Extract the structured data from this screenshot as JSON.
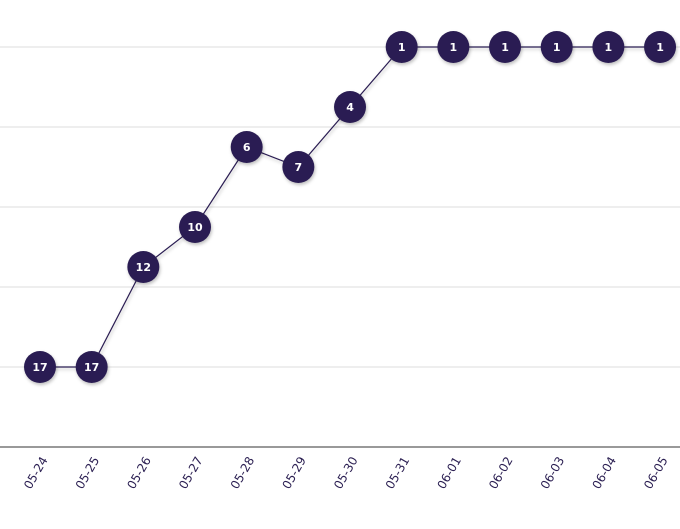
{
  "chart_data": {
    "type": "line",
    "categories": [
      "05-24",
      "05-25",
      "05-26",
      "05-27",
      "05-28",
      "05-29",
      "05-30",
      "05-31",
      "06-01",
      "06-02",
      "06-03",
      "06-04",
      "06-05"
    ],
    "values": [
      17,
      17,
      12,
      10,
      6,
      7,
      4,
      1,
      1,
      1,
      1,
      1,
      1
    ],
    "color": "#2b1f52",
    "ylim": [
      21,
      -1
    ],
    "yticks": [
      1,
      5,
      9,
      13,
      17
    ],
    "grid": true,
    "inverted": true
  }
}
